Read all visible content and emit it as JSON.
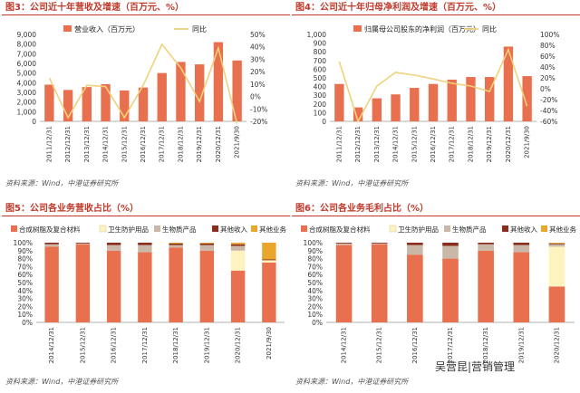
{
  "chart_data": [
    {
      "id": "c1",
      "type": "bar",
      "title": "图3：公司近十年营收及增速（百万元、%）",
      "source": "资料来源：Wind，中港证券研究所",
      "categories": [
        "2011/12/31",
        "2012/12/31",
        "2013/12/31",
        "2014/12/31",
        "2015/12/31",
        "2016/12/31",
        "2017/12/31",
        "2018/12/31",
        "2019/12/31",
        "2020/12/31",
        "2021/9/30"
      ],
      "series": [
        {
          "name": "营业收入（百万元）",
          "axis": "left",
          "type": "bar",
          "color": "#e8704e",
          "values": [
            3800,
            3250,
            3550,
            3850,
            3200,
            3500,
            5000,
            6150,
            5900,
            8200,
            6300
          ]
        },
        {
          "name": "同比",
          "axis": "right",
          "type": "line",
          "color": "#f0d27a",
          "values": [
            15,
            -17,
            9,
            8,
            -17,
            9,
            42,
            23,
            -4,
            39,
            -22
          ]
        }
      ],
      "ylim": [
        0,
        9000
      ],
      "yticks": [
        0,
        1000,
        2000,
        3000,
        4000,
        5000,
        6000,
        7000,
        8000,
        9000
      ],
      "y2lim": [
        -20,
        50
      ],
      "y2ticks": [
        -20,
        -10,
        0,
        10,
        20,
        30,
        40,
        50
      ],
      "y2ticklabels": [
        "-20%",
        "-10%",
        "0%",
        "10%",
        "20%",
        "30%",
        "40%",
        "50%"
      ]
    },
    {
      "id": "c2",
      "type": "bar",
      "title": "图4：公司近十年归母净利润及增速（百万元、%）",
      "source": "资料来源：Wind，中港证券研究所",
      "categories": [
        "2011/12/31",
        "2012/12/31",
        "2013/12/31",
        "2014/12/31",
        "2015/12/31",
        "2016/12/31",
        "2017/12/31",
        "2018/12/31",
        "2019/12/31",
        "2020/12/31",
        "2021/9/30"
      ],
      "series": [
        {
          "name": "归属母公司股东的净利润（百万元）",
          "axis": "left",
          "type": "bar",
          "color": "#e8704e",
          "values": [
            430,
            160,
            265,
            310,
            385,
            430,
            480,
            510,
            510,
            860,
            520
          ]
        },
        {
          "name": "同比",
          "axis": "right",
          "type": "line",
          "color": "#f0d27a",
          "values": [
            50,
            -60,
            5,
            30,
            25,
            18,
            10,
            5,
            -5,
            72,
            -32
          ]
        }
      ],
      "ylim": [
        0,
        1000
      ],
      "yticks": [
        0,
        100,
        200,
        300,
        400,
        500,
        600,
        700,
        800,
        900,
        1000
      ],
      "y2lim": [
        -60,
        100
      ],
      "y2ticks": [
        -60,
        -40,
        -20,
        0,
        20,
        40,
        60,
        80,
        100
      ],
      "y2ticklabels": [
        "-60%",
        "-40%",
        "-20%",
        "0%",
        "20%",
        "40%",
        "60%",
        "80%",
        "100%"
      ]
    },
    {
      "id": "c3",
      "type": "bar",
      "stacked": true,
      "title": "图5：公司各业务营收占比（%）",
      "source": "资料来源：Wind，中港证券研究所",
      "categories": [
        "2014/12/31",
        "2015/12/31",
        "2016/12/31",
        "2017/12/31",
        "2018/12/31",
        "2019/12/31",
        "2020/12/31",
        "2021/9/30"
      ],
      "series": [
        {
          "name": "合成树脂及复合材料",
          "color": "#e8704e",
          "values": [
            95,
            98,
            90,
            88,
            94,
            90,
            65,
            75
          ]
        },
        {
          "name": "卫生防护用品",
          "color": "#fdf3bf",
          "values": [
            0,
            0,
            0,
            0,
            0,
            0,
            25,
            3
          ]
        },
        {
          "name": "生物质产品",
          "color": "#c9b8a8",
          "values": [
            3,
            1,
            7,
            9,
            3,
            7,
            6,
            0
          ]
        },
        {
          "name": "其他收入",
          "color": "#8b2c1c",
          "values": [
            2,
            1,
            3,
            3,
            2,
            2,
            2,
            1
          ]
        },
        {
          "name": "其他业务",
          "color": "#e9a62a",
          "values": [
            0,
            0,
            0,
            0,
            1,
            1,
            2,
            21
          ]
        }
      ],
      "ylim": [
        0,
        100
      ],
      "yticks": [
        0,
        10,
        20,
        30,
        40,
        50,
        60,
        70,
        80,
        90,
        100
      ],
      "yticklabels": [
        "0%",
        "10%",
        "20%",
        "30%",
        "40%",
        "50%",
        "60%",
        "70%",
        "80%",
        "90%",
        "100%"
      ]
    },
    {
      "id": "c4",
      "type": "bar",
      "stacked": true,
      "title": "图6：公司各业务毛利占比（%）",
      "source": "资料来源：Wind，中港证券研究所",
      "categories": [
        "2014/12/31",
        "2015/12/31",
        "2016/12/31",
        "2017/12/31",
        "2018/12/31",
        "2019/12/31",
        "2020/12/31"
      ],
      "series": [
        {
          "name": "合成树脂及复合材料",
          "color": "#e8704e",
          "values": [
            97,
            98,
            85,
            80,
            90,
            88,
            45
          ]
        },
        {
          "name": "卫生防护用品",
          "color": "#fdf3bf",
          "values": [
            0,
            0,
            0,
            0,
            0,
            0,
            50
          ]
        },
        {
          "name": "生物质产品",
          "color": "#c9b8a8",
          "values": [
            2,
            1,
            12,
            16,
            8,
            9,
            3
          ]
        },
        {
          "name": "其他收入",
          "color": "#8b2c1c",
          "values": [
            1,
            1,
            3,
            4,
            2,
            3,
            1
          ]
        },
        {
          "name": "其他业务",
          "color": "#e9a62a",
          "values": [
            0,
            0,
            0,
            0,
            0,
            0,
            1
          ]
        }
      ],
      "ylim": [
        0,
        100
      ],
      "yticks": [
        0,
        10,
        20,
        30,
        40,
        50,
        60,
        70,
        80,
        90,
        100
      ],
      "yticklabels": [
        "0%",
        "10%",
        "20%",
        "30%",
        "40%",
        "50%",
        "60%",
        "70%",
        "80%",
        "90%",
        "100%"
      ]
    }
  ],
  "watermark": "吴营昆|营销管理"
}
